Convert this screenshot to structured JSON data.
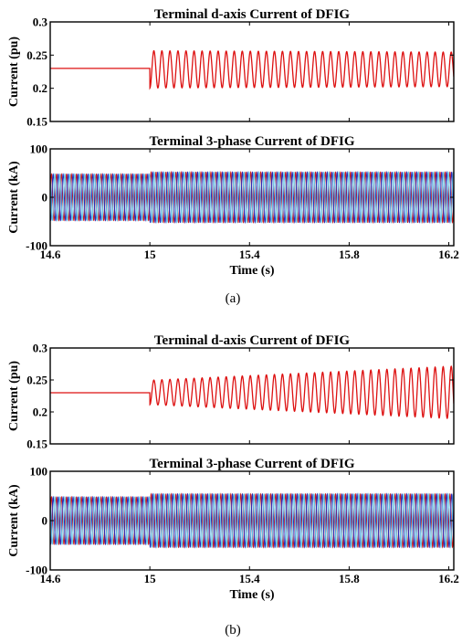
{
  "colors": {
    "phase_a": "#cc1a1a",
    "phase_b": "#2a2ab8",
    "phase_c": "#60c6e6",
    "d_axis": "#dd1111",
    "axes": "#000000"
  },
  "chart_data": [
    {
      "id": "a-top",
      "type": "line",
      "title": "Terminal d-axis Current of DFIG",
      "ylabel": "Current (pu)",
      "xlabel": "",
      "xlim": [
        14.6,
        16.22
      ],
      "ylim": [
        0.15,
        0.3
      ],
      "yticks": [
        "0.15",
        "0.2",
        "0.25",
        "0.3"
      ],
      "yticks_values": [
        0.15,
        0.2,
        0.25,
        0.3
      ],
      "xticks_values": [
        14.6,
        15.0,
        15.4,
        15.8,
        16.2
      ],
      "xticks": [],
      "grid": false,
      "series": [
        {
          "kind": "step-oscillation",
          "pre_value": 0.23,
          "t_start": 15.0,
          "mean": 0.2285,
          "amplitude_start": 0.028,
          "amplitude_end": 0.026,
          "frequency_hz": 31,
          "dip_at_start": 0.2
        }
      ]
    },
    {
      "id": "a-bottom",
      "type": "line",
      "title": "Terminal 3-phase Current of DFIG",
      "ylabel": "Current (kA)",
      "xlabel": "Time (s)",
      "xlim": [
        14.6,
        16.22
      ],
      "ylim": [
        -100,
        100
      ],
      "yticks": [
        "-100",
        "0",
        "100"
      ],
      "yticks_values": [
        -100,
        0,
        100
      ],
      "xticks": [
        "14.6",
        "15",
        "15.4",
        "15.8",
        "16.2"
      ],
      "xticks_values": [
        14.6,
        15.0,
        15.4,
        15.8,
        16.2
      ],
      "grid": false,
      "series": [
        {
          "kind": "sine",
          "phase_deg": 0,
          "amp_before": 48,
          "amp_after": 52,
          "t_change": 15.0,
          "frequency_hz": 50
        },
        {
          "kind": "sine",
          "phase_deg": -120,
          "amp_before": 48,
          "amp_after": 52,
          "t_change": 15.0,
          "frequency_hz": 50
        },
        {
          "kind": "sine",
          "phase_deg": 120,
          "amp_before": 48,
          "amp_after": 52,
          "t_change": 15.0,
          "frequency_hz": 50
        }
      ]
    },
    {
      "id": "b-top",
      "type": "line",
      "title": "Terminal d-axis Current of DFIG",
      "ylabel": "Current (pu)",
      "xlabel": "",
      "xlim": [
        14.6,
        16.22
      ],
      "ylim": [
        0.15,
        0.3
      ],
      "yticks": [
        "0.15",
        "0.2",
        "0.25",
        "0.3"
      ],
      "yticks_values": [
        0.15,
        0.2,
        0.25,
        0.3
      ],
      "xticks_values": [
        14.6,
        15.0,
        15.4,
        15.8,
        16.2
      ],
      "xticks": [],
      "grid": false,
      "series": [
        {
          "kind": "step-oscillation",
          "pre_value": 0.23,
          "t_start": 15.0,
          "mean": 0.2305,
          "amplitude_start": 0.019,
          "amplitude_end": 0.041,
          "frequency_hz": 31,
          "dip_at_start": 0.2
        }
      ]
    },
    {
      "id": "b-bottom",
      "type": "line",
      "title": "Terminal 3-phase Current of DFIG",
      "ylabel": "Current (kA)",
      "xlabel": "Time (s)",
      "xlim": [
        14.6,
        16.22
      ],
      "ylim": [
        -100,
        100
      ],
      "yticks": [
        "-100",
        "0",
        "100"
      ],
      "yticks_values": [
        -100,
        0,
        100
      ],
      "xticks": [
        "14.6",
        "15",
        "15.4",
        "15.8",
        "16.2"
      ],
      "xticks_values": [
        14.6,
        15.0,
        15.4,
        15.8,
        16.2
      ],
      "grid": false,
      "series": [
        {
          "kind": "sine",
          "phase_deg": 0,
          "amp_before": 48,
          "amp_after": 54,
          "t_change": 15.0,
          "frequency_hz": 50
        },
        {
          "kind": "sine",
          "phase_deg": -120,
          "amp_before": 48,
          "amp_after": 54,
          "t_change": 15.0,
          "frequency_hz": 50
        },
        {
          "kind": "sine",
          "phase_deg": 120,
          "amp_before": 48,
          "amp_after": 54,
          "t_change": 15.0,
          "frequency_hz": 50
        }
      ]
    }
  ],
  "captions": {
    "a": "(a)",
    "b": "(b)"
  }
}
